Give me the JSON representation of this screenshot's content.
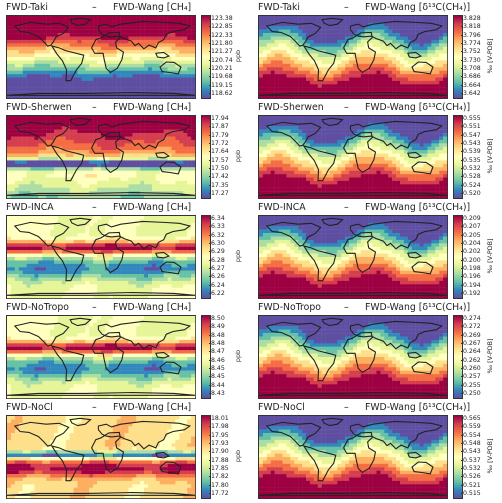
{
  "figure": {
    "panels": [
      {
        "id": "taki",
        "lhs": "FWD-Taki",
        "rhs": "FWD-Wang [CH₄]",
        "unit": "ppb",
        "ticks": [
          "123.38",
          "122.85",
          "122.33",
          "121.80",
          "121.27",
          "120.74",
          "120.21",
          "119.68",
          "119.15",
          "118.62"
        ],
        "pattern": "bands"
      },
      {
        "id": "taki-d13c",
        "lhs": "FWD-Taki",
        "rhs": "FWD-Wang [δ¹³C(CH₄)]",
        "unit": "‰ [V-PDB]",
        "ticks": [
          "3.828",
          "3.818",
          "3.796",
          "3.774",
          "3.752",
          "3.730",
          "3.708",
          "3.686",
          "3.664",
          "3.642"
        ],
        "pattern": "iso"
      },
      {
        "id": "sherwen",
        "lhs": "FWD-Sherwen",
        "rhs": "FWD-Wang [CH₄]",
        "unit": "ppb",
        "ticks": [
          "17.94",
          "17.87",
          "17.79",
          "17.72",
          "17.64",
          "17.57",
          "17.50",
          "17.42",
          "17.35",
          "17.27"
        ],
        "pattern": "sherwen"
      },
      {
        "id": "sherwen-d13c",
        "lhs": "FWD-Sherwen",
        "rhs": "FWD-Wang [δ¹³C(CH₄)]",
        "unit": "‰ [V-PDB]",
        "ticks": [
          "0.555",
          "0.551",
          "0.547",
          "0.543",
          "0.539",
          "0.535",
          "0.532",
          "0.528",
          "0.524",
          "0.520"
        ],
        "pattern": "iso"
      },
      {
        "id": "inca",
        "lhs": "FWD-INCA",
        "rhs": "FWD-Wang [CH₄]",
        "unit": "ppb",
        "ticks": [
          "6.34",
          "6.33",
          "6.32",
          "6.30",
          "6.29",
          "6.28",
          "6.27",
          "6.26",
          "6.24",
          "6.22"
        ],
        "pattern": "tropic"
      },
      {
        "id": "inca-d13c",
        "lhs": "FWD-INCA",
        "rhs": "FWD-Wang [δ¹³C(CH₄)]",
        "unit": "‰ [V-PDB]",
        "ticks": [
          "0.209",
          "0.207",
          "0.205",
          "0.204",
          "0.202",
          "0.200",
          "0.198",
          "0.196",
          "0.194",
          "0.192"
        ],
        "pattern": "iso"
      },
      {
        "id": "notropo",
        "lhs": "FWD-NoTropo",
        "rhs": "FWD-Wang [CH₄]",
        "unit": "ppb",
        "ticks": [
          "8.50",
          "8.49",
          "8.48",
          "8.48",
          "8.47",
          "8.46",
          "8.45",
          "8.45",
          "8.44",
          "8.43"
        ],
        "pattern": "tropic"
      },
      {
        "id": "notropo-d13c",
        "lhs": "FWD-NoTropo",
        "rhs": "FWD-Wang [δ¹³C(CH₄)]",
        "unit": "‰ [V-PDB]",
        "ticks": [
          "0.274",
          "0.272",
          "0.269",
          "0.267",
          "0.264",
          "0.262",
          "0.260",
          "0.257",
          "0.255",
          "0.250"
        ],
        "pattern": "iso"
      },
      {
        "id": "nocl",
        "lhs": "FWD-NoCl",
        "rhs": "FWD-Wang [CH₄]",
        "unit": "ppb",
        "ticks": [
          "18.01",
          "17.98",
          "17.95",
          "17.93",
          "17.90",
          "17.88",
          "17.85",
          "17.82",
          "17.80",
          "17.72"
        ],
        "pattern": "nocl"
      },
      {
        "id": "nocl-d13c",
        "lhs": "FWD-NoCl",
        "rhs": "FWD-Wang [δ¹³C(CH₄)]",
        "unit": "‰ [V-PDB]",
        "ticks": [
          "0.565",
          "0.559",
          "0.554",
          "0.548",
          "0.543",
          "0.537",
          "0.532",
          "0.526",
          "0.521",
          "0.515"
        ],
        "pattern": "iso"
      }
    ]
  },
  "colors": {
    "colormap": [
      "#9e0142",
      "#d53e4f",
      "#f46d43",
      "#fdae61",
      "#fee08b",
      "#ffffbf",
      "#e6f598",
      "#abdda4",
      "#66c2a5",
      "#3288bd",
      "#5e4fa2"
    ],
    "coastline": "#222222",
    "frame": "#333333"
  }
}
